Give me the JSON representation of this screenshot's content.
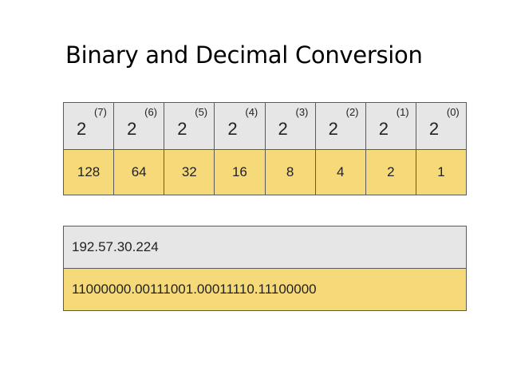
{
  "title": "Binary and Decimal Conversion",
  "powers": {
    "base": "2",
    "exponents": [
      "(7)",
      "(6)",
      "(5)",
      "(4)",
      "(3)",
      "(2)",
      "(1)",
      "(0)"
    ],
    "values": [
      "128",
      "64",
      "32",
      "16",
      "8",
      "4",
      "2",
      "1"
    ]
  },
  "ip": {
    "decimal": "192.57.30.224",
    "binary": "11000000.00111001.00011110.11100000"
  },
  "colors": {
    "header_gray": "#e6e6e6",
    "value_yellow": "#f6d979"
  }
}
